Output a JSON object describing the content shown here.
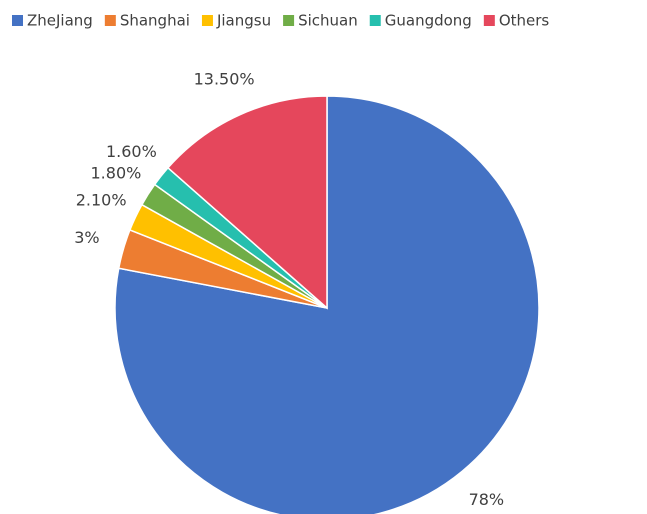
{
  "chart_data": {
    "type": "pie",
    "categories": [
      "ZheJiang",
      "Shanghai",
      "Jiangsu",
      "Sichuan",
      "Guangdong",
      "Others"
    ],
    "values": [
      78,
      3,
      2.1,
      1.8,
      1.6,
      13.5
    ],
    "value_labels": [
      "78%",
      "3%",
      "2.10%",
      "1.80%",
      "1.60%",
      "13.50%"
    ],
    "colors": [
      "#4472c4",
      "#ed7d31",
      "#ffc000",
      "#70ad47",
      "#26bfae",
      "#e5475c"
    ],
    "legend": "top"
  }
}
